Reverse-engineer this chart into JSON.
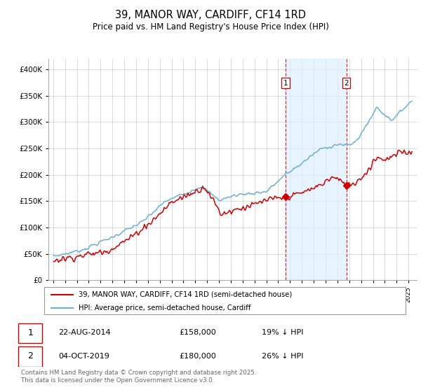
{
  "title": "39, MANOR WAY, CARDIFF, CF14 1RD",
  "subtitle": "Price paid vs. HM Land Registry's House Price Index (HPI)",
  "footer": "Contains HM Land Registry data © Crown copyright and database right 2025.\nThis data is licensed under the Open Government Licence v3.0.",
  "legend_line1": "39, MANOR WAY, CARDIFF, CF14 1RD (semi-detached house)",
  "legend_line2": "HPI: Average price, semi-detached house, Cardiff",
  "transaction1_date": "22-AUG-2014",
  "transaction1_price": "£158,000",
  "transaction1_hpi": "19% ↓ HPI",
  "transaction2_date": "04-OCT-2019",
  "transaction2_price": "£180,000",
  "transaction2_hpi": "26% ↓ HPI",
  "red_color": "#cc0000",
  "blue_color": "#6baed6",
  "vline_color": "#cc0000",
  "shaded_color": "#ddeeff",
  "ylim_min": 0,
  "ylim_max": 420000,
  "background_color": "#ffffff",
  "grid_color": "#cccccc",
  "t1_year": 2014.622,
  "t2_year": 2019.748
}
